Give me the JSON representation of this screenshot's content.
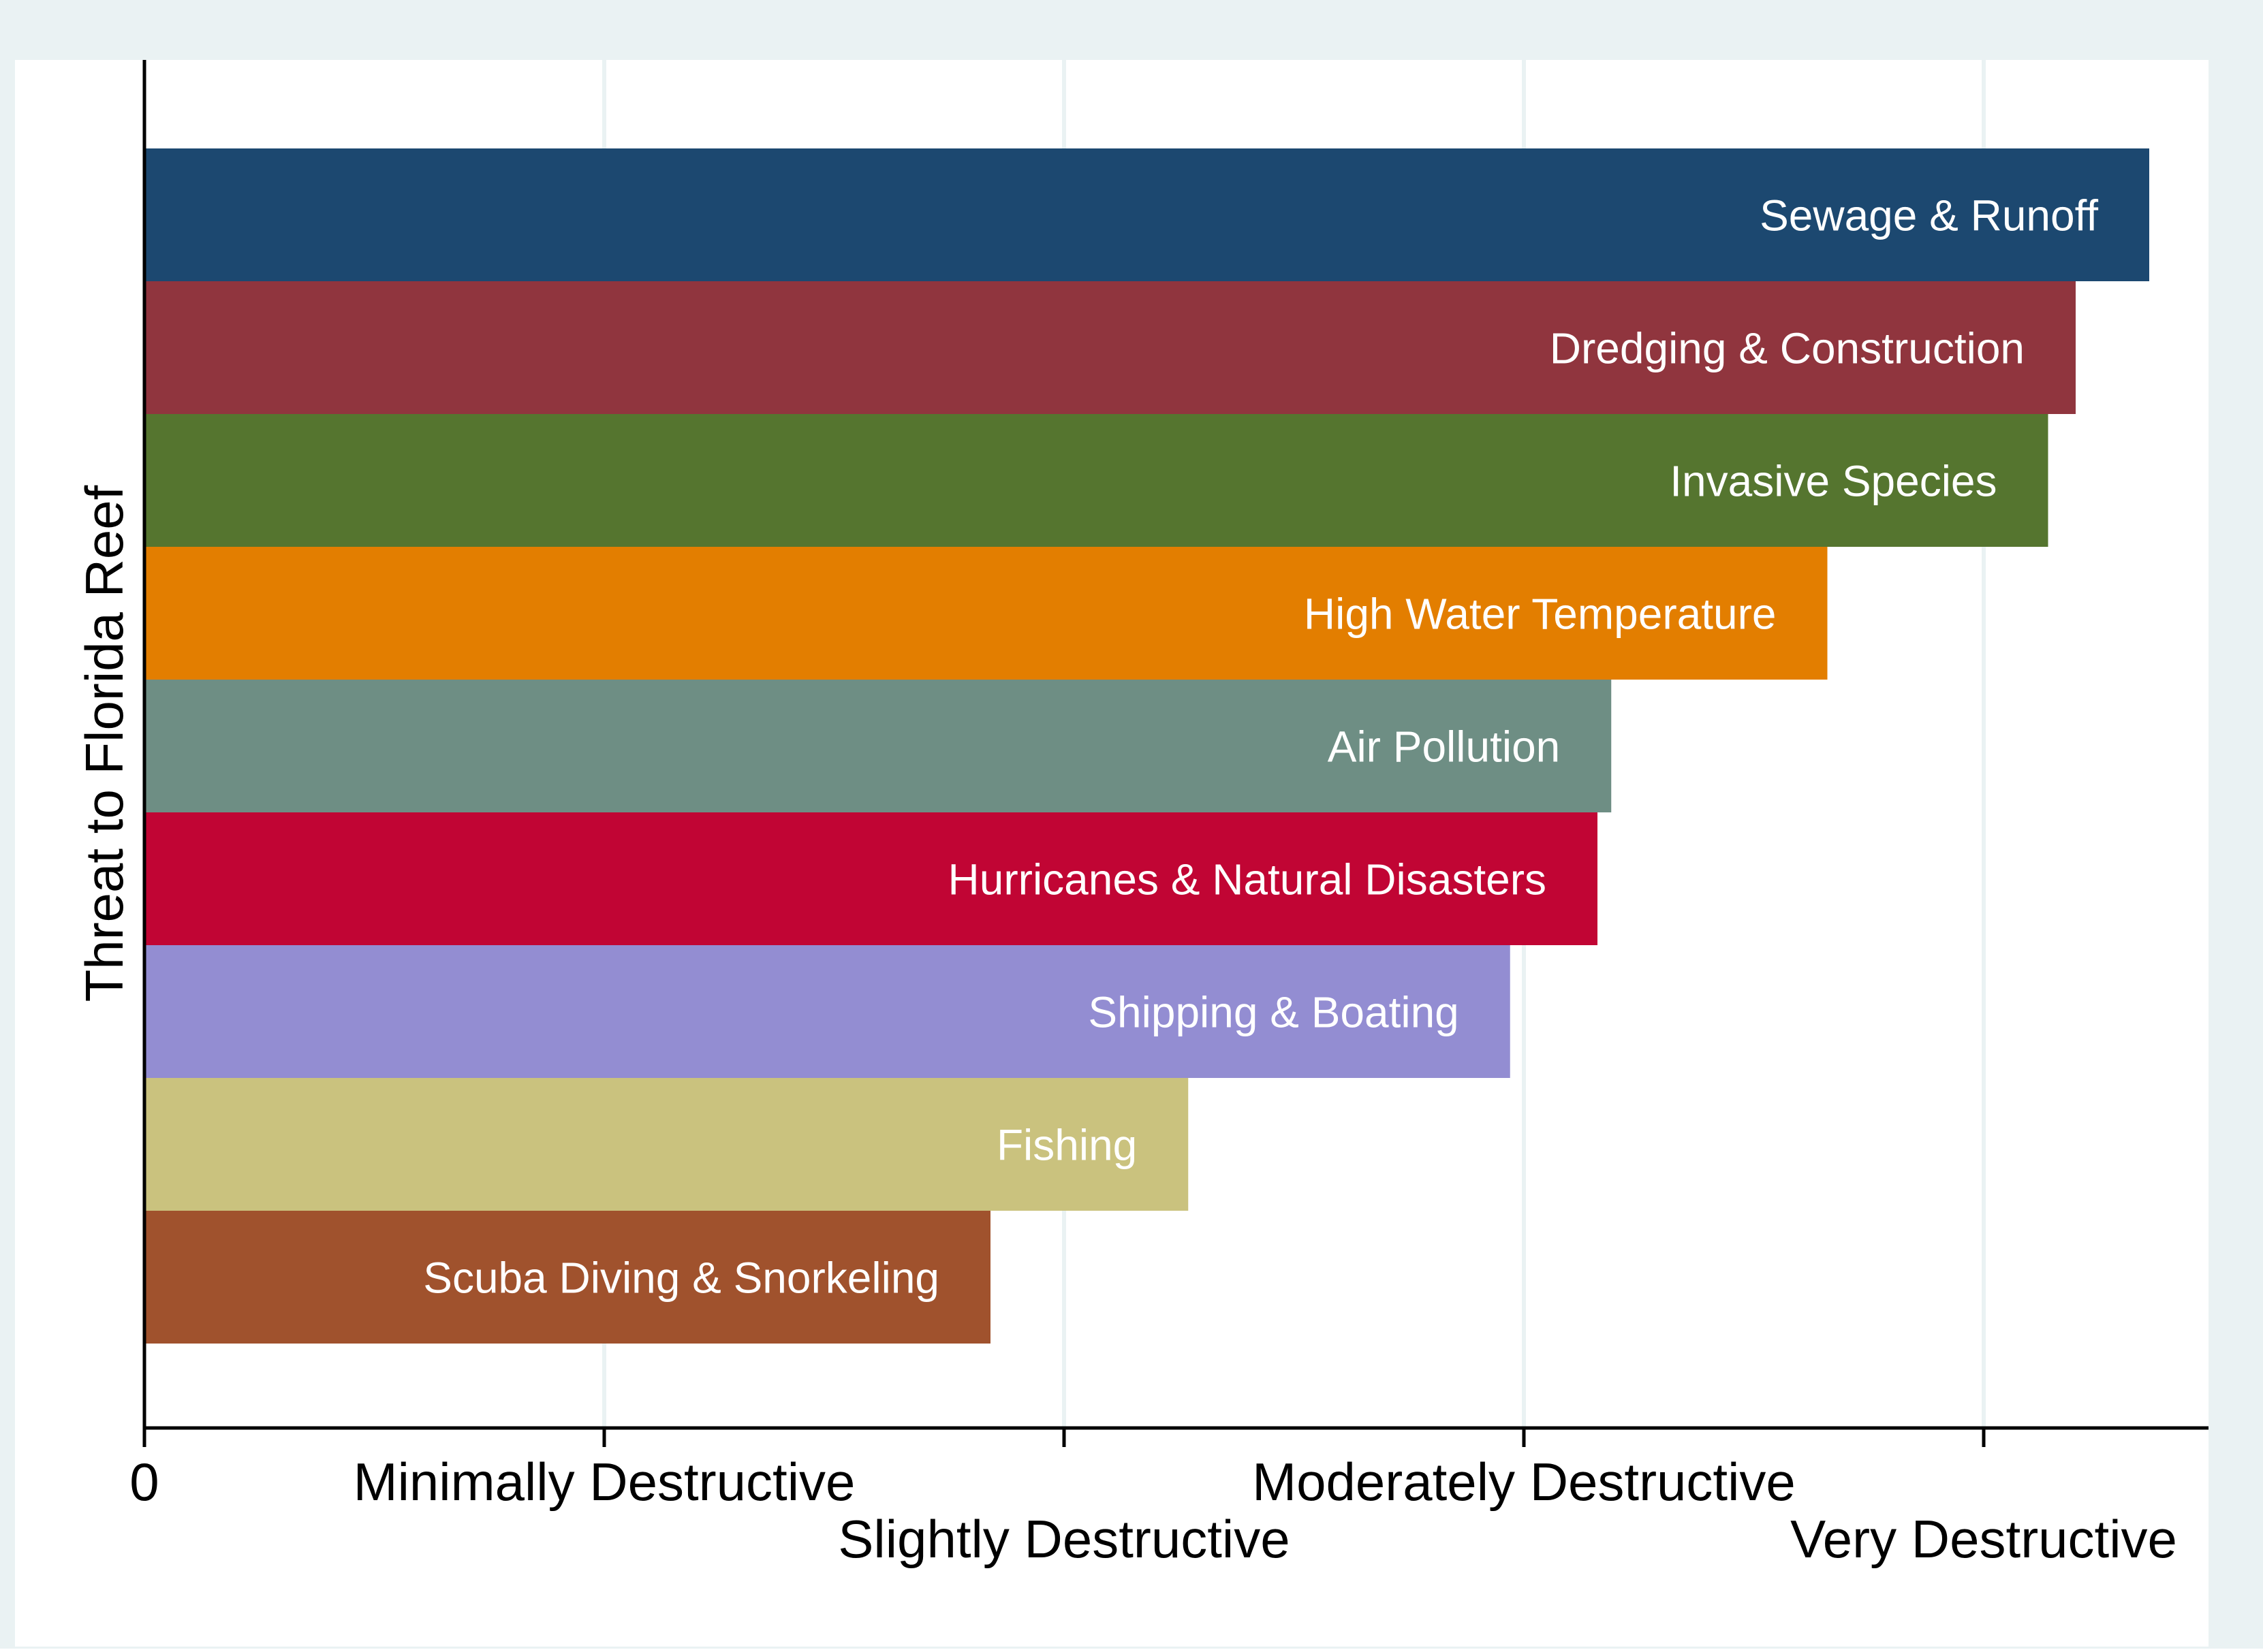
{
  "chart_data": {
    "type": "bar",
    "orientation": "horizontal",
    "title": "",
    "xlabel": "",
    "ylabel": "Threat to Florida Reef",
    "xlim": [
      0,
      4.5
    ],
    "grid": true,
    "legend": "none",
    "x_ticks": [
      {
        "value": 0,
        "label": "0",
        "row": 0
      },
      {
        "value": 1,
        "label": "Minimally Destructive",
        "row": 0
      },
      {
        "value": 2,
        "label": "Slightly Destructive",
        "row": 1
      },
      {
        "value": 3,
        "label": "Moderately Destructive",
        "row": 0
      },
      {
        "value": 4,
        "label": "Very Destructive",
        "row": 1
      }
    ],
    "bars": [
      {
        "label": "Sewage & Runoff",
        "value": 4.36,
        "color": "#1c4870"
      },
      {
        "label": "Dredging & Construction",
        "value": 4.2,
        "color": "#90353e"
      },
      {
        "label": "Invasive Species",
        "value": 4.14,
        "color": "#55752f"
      },
      {
        "label": "High Water Temperature",
        "value": 3.66,
        "color": "#e37e00"
      },
      {
        "label": "Air Pollution",
        "value": 3.19,
        "color": "#6e8e84"
      },
      {
        "label": "Hurricanes & Natural Disasters",
        "value": 3.16,
        "color": "#c10534"
      },
      {
        "label": "Shipping & Boating",
        "value": 2.97,
        "color": "#938dd2"
      },
      {
        "label": "Fishing",
        "value": 2.27,
        "color": "#cac27e"
      },
      {
        "label": "Scuba Diving & Snorkeling",
        "value": 1.84,
        "color": "#a0522d"
      }
    ],
    "colors": {
      "outer_background": "#eaf2f3",
      "plot_background": "#ffffff",
      "grid": "#eaf2f3",
      "axis": "#000000",
      "bar_label": "#ffffff"
    }
  }
}
